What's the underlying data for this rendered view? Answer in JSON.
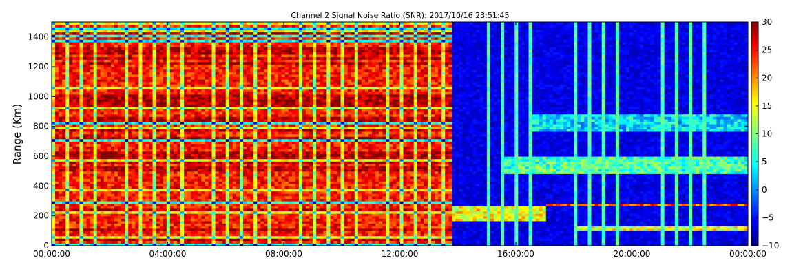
{
  "chart_data": {
    "type": "heatmap",
    "title": "Channel 2 Signal Noise Ratio (SNR): 2017/10/16 23:51:45",
    "xlabel": "",
    "ylabel": "Range (Km)",
    "x_tick_labels": [
      "00:00:00",
      "04:00:00",
      "08:00:00",
      "12:00:00",
      "16:00:00",
      "20:00:00",
      "00:00:00"
    ],
    "x_range_hours": [
      0,
      24
    ],
    "y_ticks": [
      0,
      200,
      400,
      600,
      800,
      1000,
      1200,
      1400
    ],
    "ylim": [
      0,
      1500
    ],
    "colorbar": {
      "ticks": [
        30,
        25,
        20,
        15,
        10,
        5,
        0,
        -5,
        -10
      ],
      "range": [
        -10,
        30
      ],
      "colormap": "jet"
    },
    "regime_change_hour": 13.75,
    "stripe_interval_hours": 0.5,
    "features": [
      {
        "kind": "saturated_band",
        "hours": [
          0,
          13.75
        ],
        "snr": 24
      },
      {
        "kind": "echo_trace",
        "hours": [
          13.75,
          17.0
        ],
        "range_km": [
          160,
          270
        ],
        "snr": 15
      },
      {
        "kind": "echo_trace",
        "hours": [
          17.0,
          24.0
        ],
        "range_km": [
          270,
          290
        ],
        "snr": 22
      },
      {
        "kind": "echo_layer",
        "hours": [
          15.5,
          24.0
        ],
        "range_km": [
          480,
          600
        ],
        "snr": 8
      },
      {
        "kind": "echo_layer",
        "hours": [
          16.5,
          24.0
        ],
        "range_km": [
          760,
          880
        ],
        "snr": 4
      },
      {
        "kind": "echo_layer",
        "hours": [
          18.0,
          24.0
        ],
        "range_km": [
          100,
          140
        ],
        "snr": 14
      }
    ],
    "grid": false
  }
}
